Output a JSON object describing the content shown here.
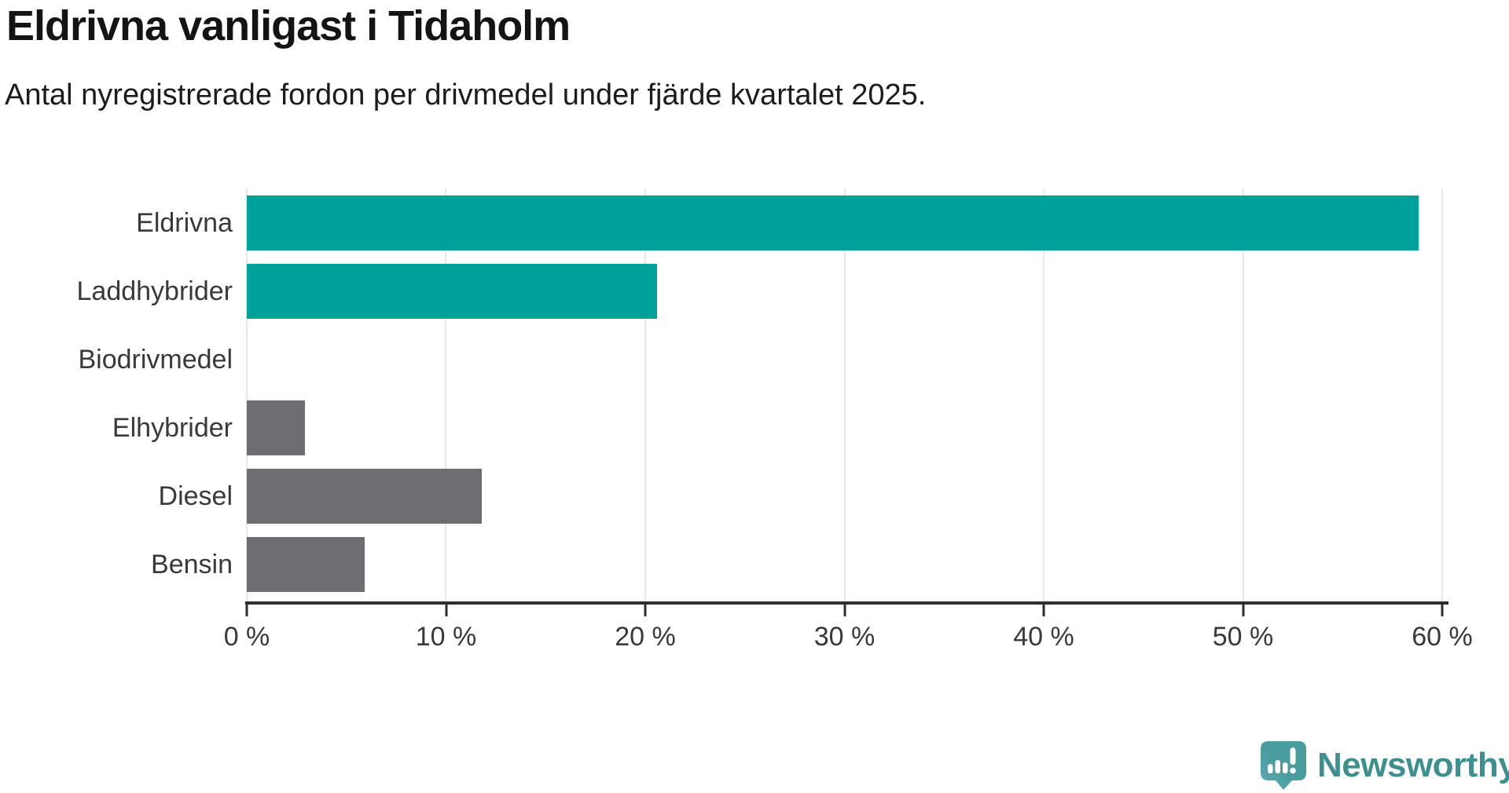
{
  "chart_data": {
    "type": "bar",
    "orientation": "horizontal",
    "title": "Eldrivna vanligast i Tidaholm",
    "subtitle": "Antal nyregistrerade fordon per drivmedel under fjärde kvartalet 2025.",
    "categories": [
      "Eldrivna",
      "Laddhybrider",
      "Biodrivmedel",
      "Elhybrider",
      "Diesel",
      "Bensin"
    ],
    "values": [
      58.8,
      20.6,
      0,
      2.9,
      11.8,
      5.9
    ],
    "unit": "%",
    "bar_colors": [
      "#00a09b",
      "#00a09b",
      "#00a09b",
      "#6d6d72",
      "#6d6d72",
      "#6d6d72"
    ],
    "xlabel": "",
    "ylabel": "",
    "xlim": [
      0,
      60
    ],
    "x_ticks": [
      0,
      10,
      20,
      30,
      40,
      50,
      60
    ],
    "x_tick_labels": [
      "0 %",
      "10 %",
      "20 %",
      "30 %",
      "40 %",
      "50 %",
      "60 %"
    ],
    "grid": "vertical-gridlines-on",
    "legend": "none"
  },
  "colors": {
    "accent_teal": "#00a09b",
    "neutral_gray": "#6d6d72",
    "gridline": "#e8e8ea",
    "axis": "#2e2e31",
    "logo_teal": "#4a9d9e",
    "logo_text": "#3e8f90"
  },
  "footer": {
    "brand": "Newsworthy"
  }
}
